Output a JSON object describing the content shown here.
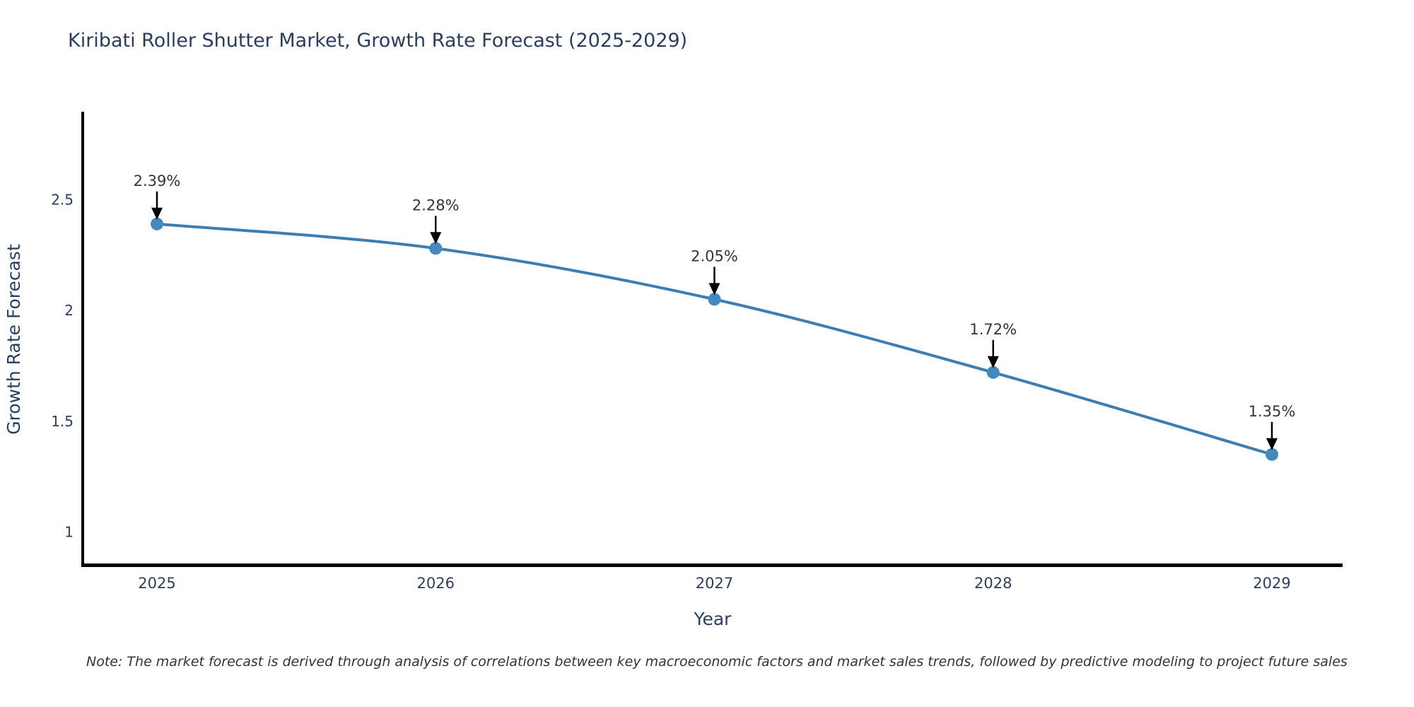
{
  "page": {
    "background": "#ffffff"
  },
  "note": "Note: The market forecast is derived through analysis of correlations between key macroeconomic factors and market sales trends, followed by predictive modeling to project future sales",
  "colors": {
    "title_text": "#2a3f5f",
    "axis_text": "#2a3f5f",
    "annotation_text": "#2f3542",
    "note_text": "#30343a",
    "axis_line": "#000000",
    "series_line": "#3c7db4",
    "marker_fill": "#4289c0",
    "arrow": "#000000"
  },
  "chart_data": {
    "type": "line",
    "title": "Kiribati Roller Shutter Market, Growth Rate Forecast (2025-2029)",
    "xlabel": "Year",
    "ylabel": "Growth Rate Forecast",
    "categories": [
      "2025",
      "2026",
      "2027",
      "2028",
      "2029"
    ],
    "values": [
      2.39,
      2.28,
      2.05,
      1.72,
      1.35
    ],
    "point_labels": [
      "2.39%",
      "2.28%",
      "2.05%",
      "1.72%",
      "1.35%"
    ],
    "yticks": [
      2.5,
      2,
      1.5,
      1
    ],
    "ylim": [
      0.85,
      2.9
    ],
    "grid": false,
    "legend": "none",
    "line_shape": "spline",
    "marker": "circle"
  }
}
